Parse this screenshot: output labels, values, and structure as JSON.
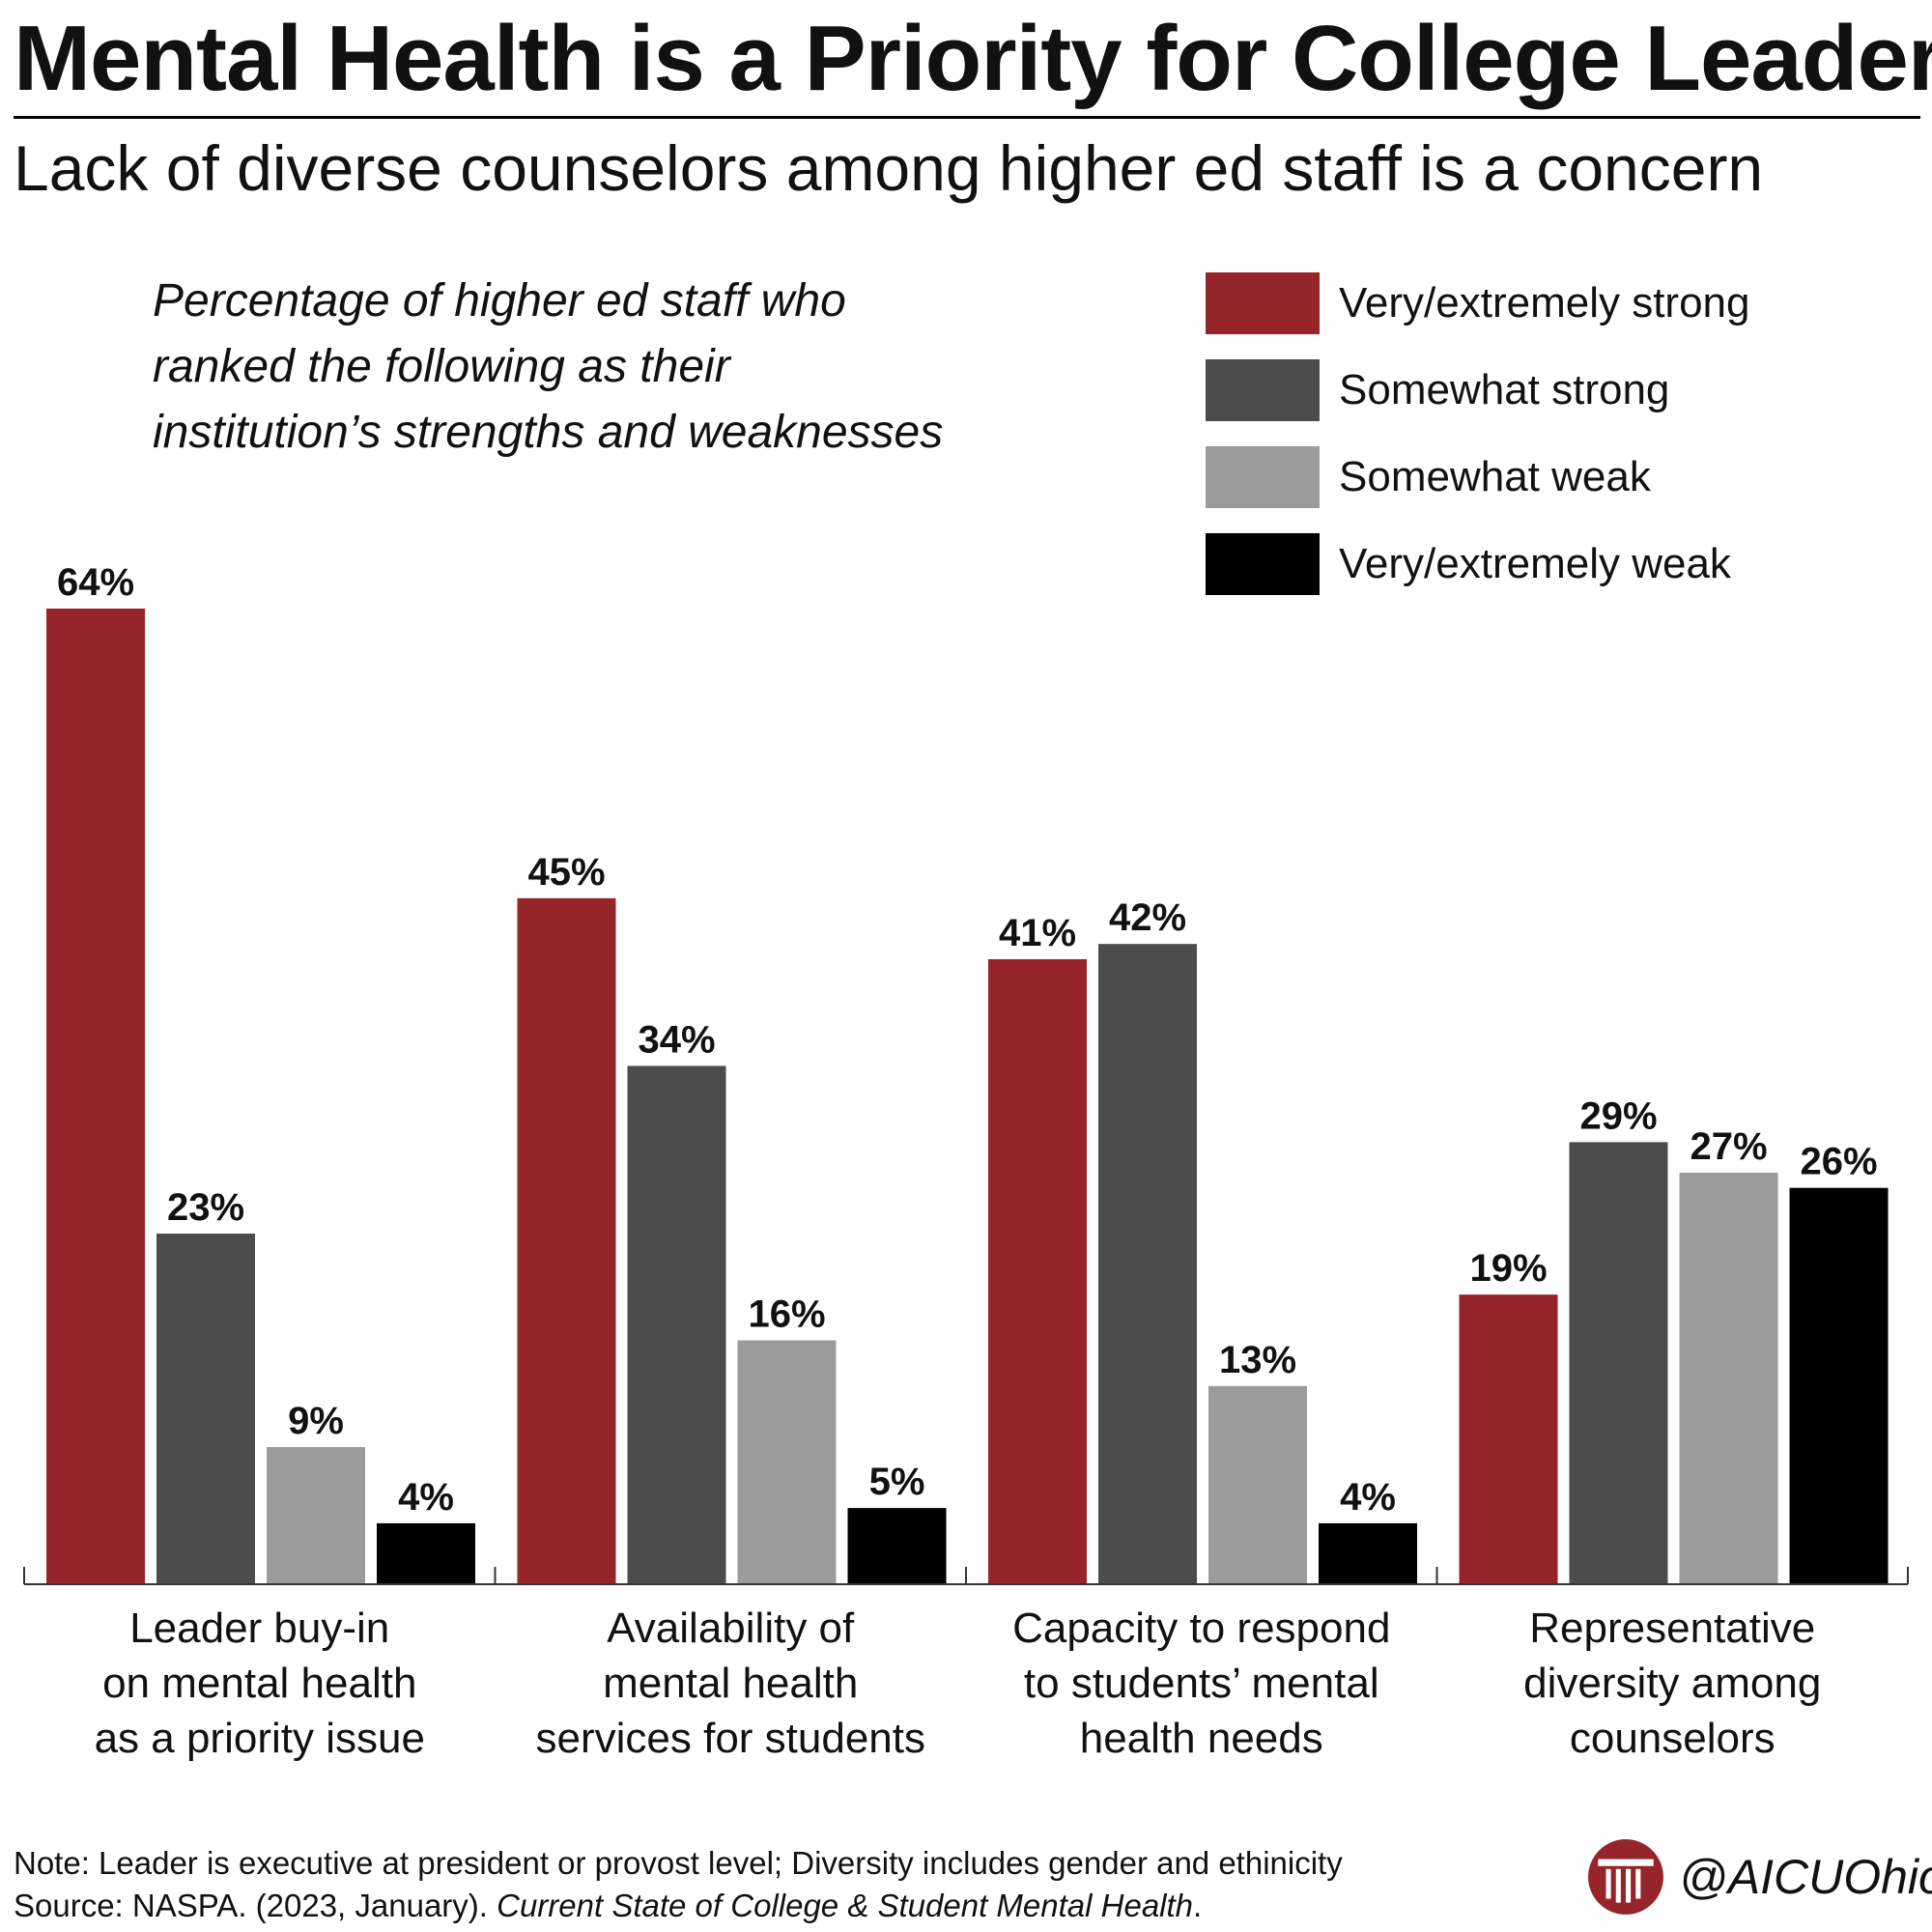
{
  "header": {
    "title": "Mental Health is a Priority for College Leaders",
    "subtitle": "Lack of diverse counselors among higher ed staff is a concern"
  },
  "description_lines": [
    "Percentage of higher ed staff who",
    "ranked the following as their",
    "institution’s strengths and weaknesses"
  ],
  "footer": {
    "note": "Note: Leader is executive at president or provost level; Diversity includes gender and ethinicity",
    "source_prefix": "Source: NASPA. (2023, January). ",
    "source_title": "Current State of College & Student Mental Health",
    "source_suffix": "."
  },
  "brand": {
    "handle": "@AICUOhio",
    "logo_icon": "column-logo-icon",
    "color": "#96242b"
  },
  "chart_data": {
    "type": "bar",
    "title": "Percentage of higher ed staff who ranked the following as their institution’s strengths and weaknesses",
    "categories": [
      [
        "Leader buy-in",
        "on mental health",
        "as a priority issue"
      ],
      [
        "Availability of",
        "mental health",
        "services for students"
      ],
      [
        "Capacity to respond",
        "to students’ mental",
        "health needs"
      ],
      [
        "Representative",
        "diversity among",
        "counselors"
      ]
    ],
    "series": [
      {
        "name": "Very/extremely strong",
        "color": "#96242b",
        "values": [
          64,
          45,
          41,
          19
        ]
      },
      {
        "name": "Somewhat strong",
        "color": "#4c4c4c",
        "values": [
          23,
          34,
          42,
          29
        ]
      },
      {
        "name": "Somewhat weak",
        "color": "#9b9b9b",
        "values": [
          9,
          16,
          13,
          27
        ]
      },
      {
        "name": "Very/extremely weak",
        "color": "#000000",
        "values": [
          4,
          5,
          4,
          26
        ]
      }
    ],
    "value_suffix": "%",
    "ylim": [
      0,
      64
    ],
    "legend_position": "top-right",
    "grid": false
  }
}
